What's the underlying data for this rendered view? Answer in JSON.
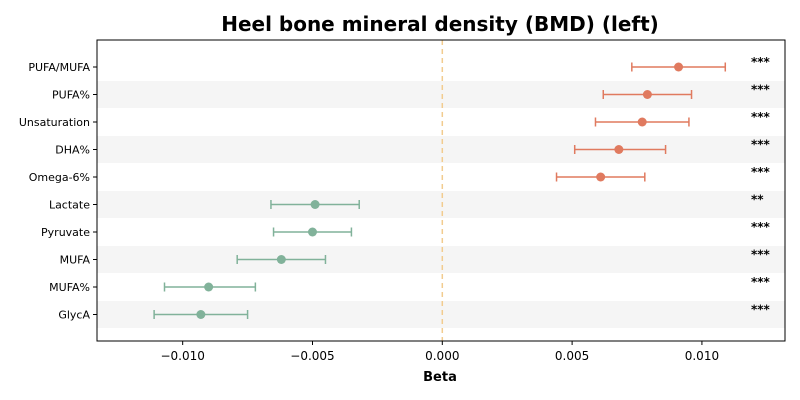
{
  "chart_data": {
    "type": "scatter",
    "subtype": "forest-plot",
    "title": "Heel bone mineral density (BMD) (left)",
    "xlabel": "Beta",
    "ylabel": "",
    "xlim": [
      -0.0133,
      0.0132
    ],
    "xticks": [
      -0.01,
      -0.005,
      0.0,
      0.005,
      0.01
    ],
    "xtick_labels": [
      "−0.010",
      "−0.005",
      "0.000",
      "0.005",
      "0.010"
    ],
    "reference_line": 0.0,
    "grid": false,
    "row_shading": "alternating",
    "colors": {
      "positive": "#e07a5f",
      "negative": "#81b29a",
      "reference": "#f2cc8f",
      "band": "#f5f5f5"
    },
    "rows": [
      {
        "label": "PUFA/MUFA",
        "beta": 0.0091,
        "ci_low": 0.0073,
        "ci_high": 0.0109,
        "sig": "***"
      },
      {
        "label": "PUFA%",
        "beta": 0.0079,
        "ci_low": 0.0062,
        "ci_high": 0.0096,
        "sig": "***"
      },
      {
        "label": "Unsaturation",
        "beta": 0.0077,
        "ci_low": 0.0059,
        "ci_high": 0.0095,
        "sig": "***"
      },
      {
        "label": "DHA%",
        "beta": 0.0068,
        "ci_low": 0.0051,
        "ci_high": 0.0086,
        "sig": "***"
      },
      {
        "label": "Omega-6%",
        "beta": 0.0061,
        "ci_low": 0.0044,
        "ci_high": 0.0078,
        "sig": "***"
      },
      {
        "label": "Lactate",
        "beta": -0.0049,
        "ci_low": -0.0066,
        "ci_high": -0.0032,
        "sig": "**"
      },
      {
        "label": "Pyruvate",
        "beta": -0.005,
        "ci_low": -0.0065,
        "ci_high": -0.0035,
        "sig": "***"
      },
      {
        "label": "MUFA",
        "beta": -0.0062,
        "ci_low": -0.0079,
        "ci_high": -0.0045,
        "sig": "***"
      },
      {
        "label": "MUFA%",
        "beta": -0.009,
        "ci_low": -0.0107,
        "ci_high": -0.0072,
        "sig": "***"
      },
      {
        "label": "GlycA",
        "beta": -0.0093,
        "ci_low": -0.0111,
        "ci_high": -0.0075,
        "sig": "***"
      }
    ]
  }
}
